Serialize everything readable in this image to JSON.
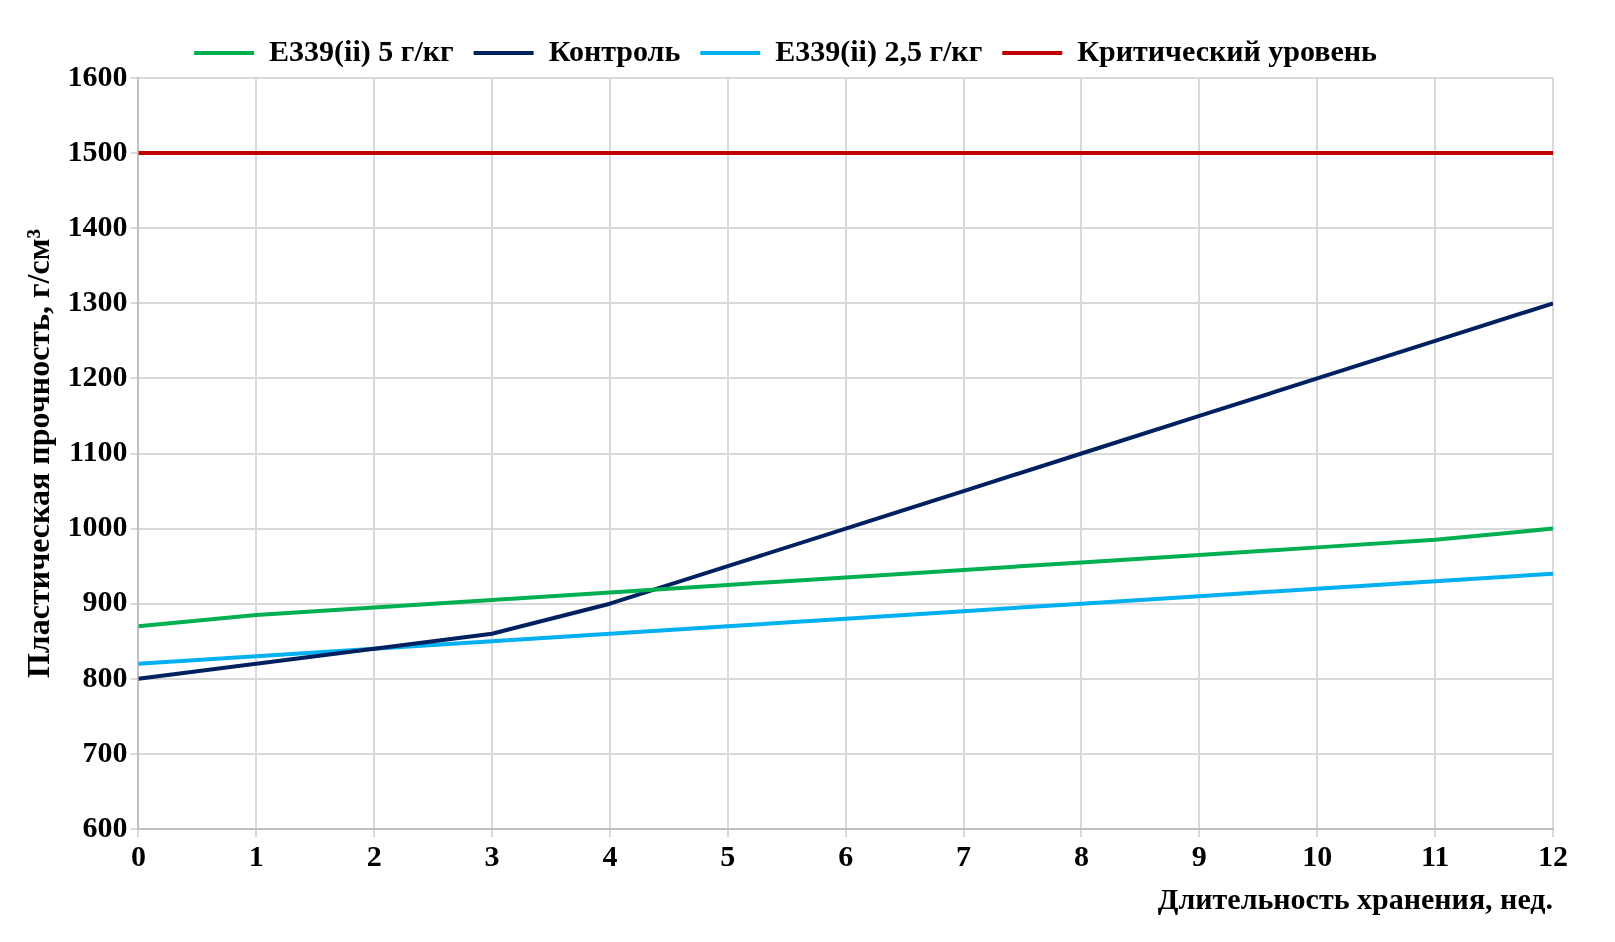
{
  "chart_data": {
    "type": "line",
    "xlabel": "Длительность хранения, нед.",
    "ylabel": "Пластическая прочность, г/см³",
    "x": [
      0,
      1,
      2,
      3,
      4,
      5,
      6,
      7,
      8,
      9,
      10,
      11,
      12
    ],
    "series": [
      {
        "name": "E339(ii) 5 г/кг",
        "color": "#00b050",
        "values": [
          870,
          885,
          895,
          905,
          915,
          925,
          935,
          945,
          955,
          965,
          975,
          985,
          1000
        ]
      },
      {
        "name": "Контроль",
        "color": "#002060",
        "values": [
          800,
          820,
          840,
          860,
          900,
          950,
          1000,
          1050,
          1100,
          1150,
          1200,
          1250,
          1300
        ]
      },
      {
        "name": "E339(ii) 2,5 г/кг",
        "color": "#00b0f0",
        "values": [
          820,
          830,
          840,
          850,
          860,
          870,
          880,
          890,
          900,
          910,
          920,
          930,
          940
        ]
      },
      {
        "name": "Критический уровень",
        "color": "#c00000",
        "values": [
          1500,
          1500,
          1500,
          1500,
          1500,
          1500,
          1500,
          1500,
          1500,
          1500,
          1500,
          1500,
          1500
        ]
      }
    ],
    "xlim": [
      0,
      12
    ],
    "xticks": [
      0,
      1,
      2,
      3,
      4,
      5,
      6,
      7,
      8,
      9,
      10,
      11,
      12
    ],
    "ylim": [
      600,
      1600
    ],
    "yticks": [
      600,
      700,
      800,
      900,
      1000,
      1100,
      1200,
      1300,
      1400,
      1500,
      1600
    ],
    "grid": true,
    "legend": "top",
    "marker": "none",
    "line_style": "solid"
  }
}
